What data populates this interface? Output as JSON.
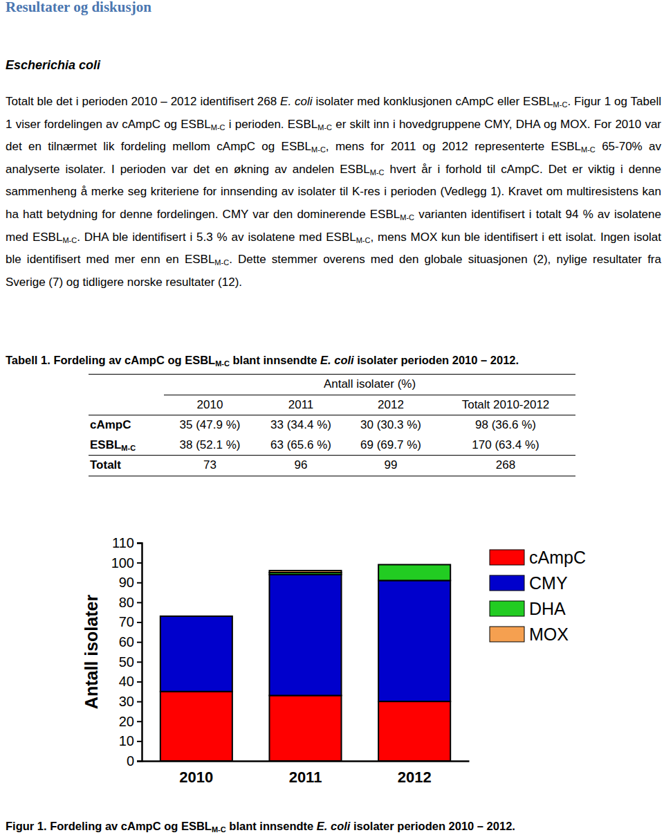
{
  "heading": "Resultater og diskusjon",
  "subheading": "Escherichia coli",
  "paragraph": [
    "Totalt ble det i perioden 2010 – 2012 identifisert 268 ",
    {
      "text": "E. coli",
      "style": "italic"
    },
    " isolater med konklusjonen cAmpC eller ESBL",
    {
      "text": "M-C",
      "style": "sub"
    },
    ". Figur 1 og Tabell 1 viser fordelingen av cAmpC og ESBL",
    {
      "text": "M-C",
      "style": "sub"
    },
    " i perioden. ESBL",
    {
      "text": "M-C",
      "style": "sub"
    },
    " er skilt inn i hovedgruppene CMY, DHA og MOX. For 2010 var det en tilnærmet lik fordeling mellom cAmpC og ESBL",
    {
      "text": "M-C",
      "style": "sub"
    },
    ", mens for 2011 og 2012 representerte ESBL",
    {
      "text": "M-C",
      "style": "sub"
    },
    " 65-70% av analyserte isolater. I perioden var det en økning av andelen ESBL",
    {
      "text": "M-C",
      "style": "sub"
    },
    " hvert år i forhold til cAmpC. Det er viktig i denne sammenheng å merke seg kriteriene for innsending av isolater til K-res i perioden (Vedlegg 1). Kravet om multiresistens kan ha hatt betydning for denne fordelingen. CMY var den dominerende ESBL",
    {
      "text": "M-C",
      "style": "sub"
    },
    " varianten identifisert i totalt 94 % av isolatene med ESBL",
    {
      "text": "M-C",
      "style": "sub"
    },
    ". DHA ble identifisert i 5.3 % av isolatene med ESBL",
    {
      "text": "M-C",
      "style": "sub"
    },
    ", mens MOX kun ble identifisert i ett isolat. Ingen isolat ble identifisert med mer enn en ESBL",
    {
      "text": "M-C",
      "style": "sub"
    },
    ". Dette stemmer overens med den globale situasjonen (2), nylige resultater fra Sverige (7) og tidligere norske resultater (12)."
  ],
  "table_caption": [
    "Tabell 1. Fordeling av cAmpC og ESBL",
    {
      "text": "M-C",
      "style": "sub"
    },
    " blant innsendte ",
    {
      "text": "E. coli",
      "style": "italic"
    },
    " isolater perioden 2010 – 2012."
  ],
  "table": {
    "group_header": "Antall isolater (%)",
    "columns": [
      "2010",
      "2011",
      "2012",
      "Totalt 2010-2012"
    ],
    "rows": [
      {
        "label": [
          "cAmpC"
        ],
        "cells": [
          "35 (47.9 %)",
          "33 (34.4 %)",
          "30 (30.3 %)",
          "98 (36.6 %)"
        ]
      },
      {
        "label": [
          "ESBL",
          {
            "text": "M-C",
            "style": "sub"
          }
        ],
        "cells": [
          "38 (52.1 %)",
          "63 (65.6 %)",
          "69 (69.7 %)",
          "170 (63.4 %)"
        ]
      },
      {
        "label": [
          "Totalt"
        ],
        "cells": [
          "73",
          "96",
          "99",
          "268"
        ]
      }
    ]
  },
  "chart_data": {
    "type": "bar",
    "stacked": true,
    "y_label": "Antall isolater",
    "categories": [
      "2010",
      "2011",
      "2012"
    ],
    "series": [
      {
        "name": "cAmpC",
        "color": "#ff0000",
        "values": [
          35,
          33,
          30
        ]
      },
      {
        "name": "CMY",
        "color": "#0000cc",
        "values": [
          38,
          61,
          61
        ]
      },
      {
        "name": "DHA",
        "color": "#22cc22",
        "values": [
          0,
          1,
          8
        ]
      },
      {
        "name": "MOX",
        "color": "#f5a050",
        "values": [
          0,
          1,
          0
        ]
      }
    ],
    "ylim": [
      0,
      110
    ],
    "yticks": [
      0,
      10,
      20,
      30,
      40,
      50,
      60,
      70,
      80,
      90,
      100,
      110
    ],
    "legend": "top-right"
  },
  "figure_caption": [
    "Figur 1. Fordeling av cAmpC og ESBL",
    {
      "text": "M-C",
      "style": "sub"
    },
    " blant innsendte ",
    {
      "text": "E. coli",
      "style": "italic"
    },
    " isolater perioden 2010 – 2012."
  ]
}
